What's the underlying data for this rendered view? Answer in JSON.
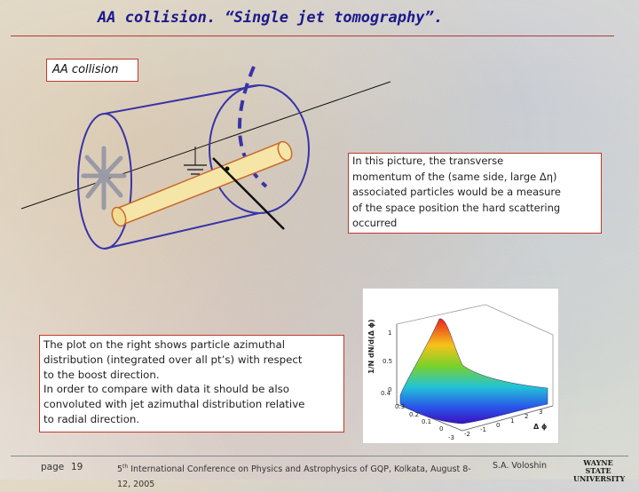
{
  "slide": {
    "title": "AA collision. “Single jet tomography”."
  },
  "diagram": {
    "label": "AA collision"
  },
  "info_box": {
    "lines": [
      "In this picture, the transverse",
      " momentum of the (same side, large Δη)",
      "associated particles would be  a measure",
      "of the space position the hard scattering",
      "occurred"
    ]
  },
  "plot": {
    "zlabel": "1/N dN/d(Δ ϕ)",
    "philabel": "Δ ϕ",
    "z_ticks": [
      "1",
      "0.5",
      "0"
    ],
    "r_ticks": [
      "0.4",
      "0.3",
      "0.2",
      "0.1",
      "0"
    ],
    "phi_ticks": [
      "-3",
      "-2",
      "-1",
      "0",
      "1",
      "2",
      "3"
    ]
  },
  "plot_text": {
    "lines": [
      "The plot on the right shows particle azimuthal",
      "distribution (integrated over all pt’s) with respect",
      "to the boost direction.",
      "In order to compare with data it should be also",
      "convoluted with jet azimuthal distribution relative",
      "to radial direction."
    ]
  },
  "footer": {
    "page_label": "page",
    "page_number": "19",
    "conference_sup": "th",
    "conference_num": "5",
    "conference": "International Conference on Physics and Astrophysics of GQP, Kolkata, August 8-12, 2005",
    "author": "S.A. Voloshin",
    "logo_line1": "WAYNE STATE",
    "logo_line2": "UNIVERSITY"
  },
  "colors": {
    "title": "#1a1a8c",
    "box_border": "#c0392b",
    "cylinder": "#3a33a8",
    "jet_tube": "#f5e6a8"
  }
}
